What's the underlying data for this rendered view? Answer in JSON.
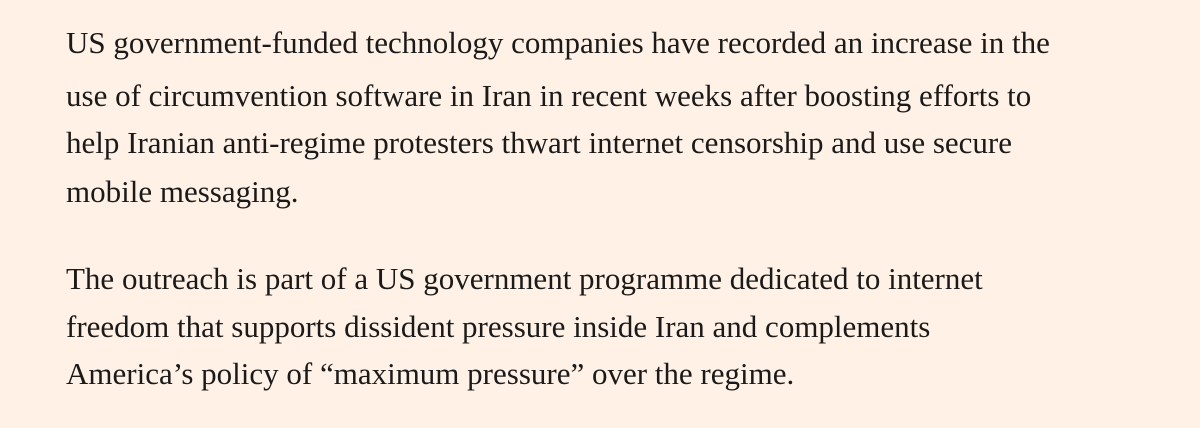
{
  "article": {
    "paragraphs": [
      {
        "lines": [
          "US government-funded technology companies have recorded an increase in the",
          "use of circumvention software in Iran in recent weeks after boosting efforts to",
          "help Iranian anti-regime protesters thwart internet censorship and use secure",
          "mobile messaging."
        ]
      },
      {
        "lines": [
          "The outreach is part of a US government programme dedicated to internet",
          "freedom that supports dissident pressure inside Iran and complements",
          "America’s policy of “maximum pressure” over the regime."
        ]
      }
    ]
  }
}
